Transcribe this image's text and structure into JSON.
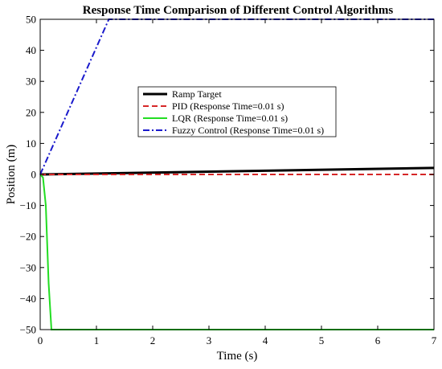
{
  "chart_data": {
    "type": "line",
    "title": "Response Time Comparison of Different Control Algorithms",
    "xlabel": "Time (s)",
    "ylabel": "Position (m)",
    "xlim": [
      0,
      7
    ],
    "ylim": [
      -50,
      50
    ],
    "xticks": [
      0,
      1,
      2,
      3,
      4,
      5,
      6,
      7
    ],
    "yticks": [
      -50,
      -40,
      -30,
      -20,
      -10,
      0,
      10,
      20,
      30,
      40,
      50
    ],
    "grid": false,
    "legend_position": "upper-center",
    "series": [
      {
        "name": "Ramp Target",
        "color": "#000000",
        "style": "solid",
        "x": [
          0,
          7
        ],
        "y": [
          0,
          2.1
        ]
      },
      {
        "name": "PID (Response Time=0.01 s)",
        "color": "#d62728",
        "style": "dashed",
        "x": [
          0,
          7
        ],
        "y": [
          0,
          0
        ]
      },
      {
        "name": "LQR (Response Time=0.01 s)",
        "color": "#22dd22",
        "style": "solid",
        "x": [
          0,
          0.05,
          0.1,
          0.15,
          0.2,
          7
        ],
        "y": [
          0,
          -1,
          -10,
          -35,
          -50,
          -50
        ]
      },
      {
        "name": "Fuzzy Control (Response Time=0.01 s)",
        "color": "#1a1acc",
        "style": "dashdot",
        "x": [
          0,
          1.22,
          7
        ],
        "y": [
          0,
          50,
          50
        ]
      }
    ]
  }
}
